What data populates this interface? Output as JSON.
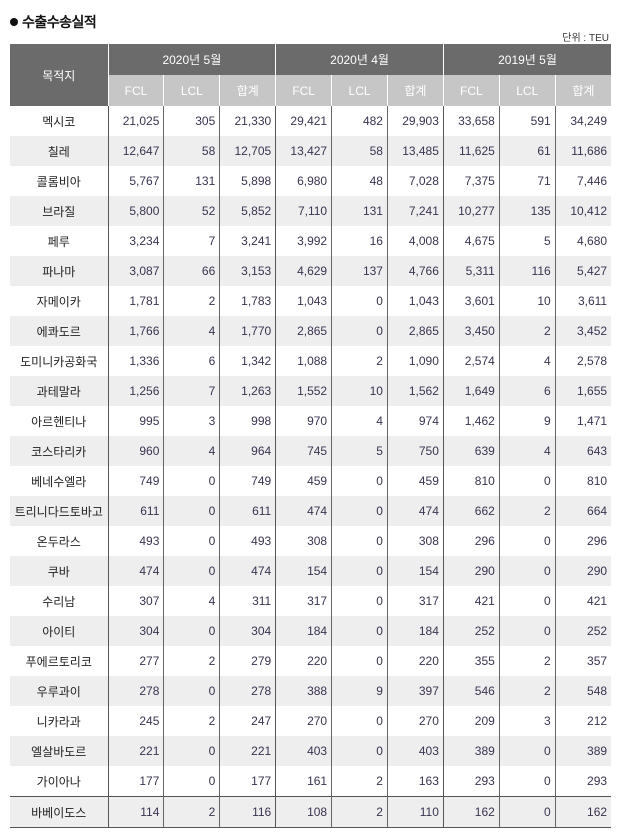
{
  "title": "수출수송실적",
  "unit": "단위 : TEU",
  "table": {
    "dest_header": "목적지",
    "groups": [
      "2020년 5월",
      "2020년 4월",
      "2019년 5월"
    ],
    "subcolumns": [
      "FCL",
      "LCL",
      "합계"
    ],
    "rows": [
      {
        "name": "멕시코",
        "values": [
          "21,025",
          "305",
          "21,330",
          "29,421",
          "482",
          "29,903",
          "33,658",
          "591",
          "34,249"
        ]
      },
      {
        "name": "칠레",
        "values": [
          "12,647",
          "58",
          "12,705",
          "13,427",
          "58",
          "13,485",
          "11,625",
          "61",
          "11,686"
        ]
      },
      {
        "name": "콜롬비아",
        "values": [
          "5,767",
          "131",
          "5,898",
          "6,980",
          "48",
          "7,028",
          "7,375",
          "71",
          "7,446"
        ]
      },
      {
        "name": "브라질",
        "values": [
          "5,800",
          "52",
          "5,852",
          "7,110",
          "131",
          "7,241",
          "10,277",
          "135",
          "10,412"
        ]
      },
      {
        "name": "페루",
        "values": [
          "3,234",
          "7",
          "3,241",
          "3,992",
          "16",
          "4,008",
          "4,675",
          "5",
          "4,680"
        ]
      },
      {
        "name": "파나마",
        "values": [
          "3,087",
          "66",
          "3,153",
          "4,629",
          "137",
          "4,766",
          "5,311",
          "116",
          "5,427"
        ]
      },
      {
        "name": "자메이카",
        "values": [
          "1,781",
          "2",
          "1,783",
          "1,043",
          "0",
          "1,043",
          "3,601",
          "10",
          "3,611"
        ]
      },
      {
        "name": "에콰도르",
        "values": [
          "1,766",
          "4",
          "1,770",
          "2,865",
          "0",
          "2,865",
          "3,450",
          "2",
          "3,452"
        ]
      },
      {
        "name": "도미니카공화국",
        "values": [
          "1,336",
          "6",
          "1,342",
          "1,088",
          "2",
          "1,090",
          "2,574",
          "4",
          "2,578"
        ]
      },
      {
        "name": "과테말라",
        "values": [
          "1,256",
          "7",
          "1,263",
          "1,552",
          "10",
          "1,562",
          "1,649",
          "6",
          "1,655"
        ]
      },
      {
        "name": "아르헨티나",
        "values": [
          "995",
          "3",
          "998",
          "970",
          "4",
          "974",
          "1,462",
          "9",
          "1,471"
        ]
      },
      {
        "name": "코스타리카",
        "values": [
          "960",
          "4",
          "964",
          "745",
          "5",
          "750",
          "639",
          "4",
          "643"
        ]
      },
      {
        "name": "베네수엘라",
        "values": [
          "749",
          "0",
          "749",
          "459",
          "0",
          "459",
          "810",
          "0",
          "810"
        ]
      },
      {
        "name": "트리니다드토바고",
        "values": [
          "611",
          "0",
          "611",
          "474",
          "0",
          "474",
          "662",
          "2",
          "664"
        ]
      },
      {
        "name": "온두라스",
        "values": [
          "493",
          "0",
          "493",
          "308",
          "0",
          "308",
          "296",
          "0",
          "296"
        ]
      },
      {
        "name": "쿠바",
        "values": [
          "474",
          "0",
          "474",
          "154",
          "0",
          "154",
          "290",
          "0",
          "290"
        ]
      },
      {
        "name": "수리남",
        "values": [
          "307",
          "4",
          "311",
          "317",
          "0",
          "317",
          "421",
          "0",
          "421"
        ]
      },
      {
        "name": "아이티",
        "values": [
          "304",
          "0",
          "304",
          "184",
          "0",
          "184",
          "252",
          "0",
          "252"
        ]
      },
      {
        "name": "푸에르토리코",
        "values": [
          "277",
          "2",
          "279",
          "220",
          "0",
          "220",
          "355",
          "2",
          "357"
        ]
      },
      {
        "name": "우루과이",
        "values": [
          "278",
          "0",
          "278",
          "388",
          "9",
          "397",
          "546",
          "2",
          "548"
        ]
      },
      {
        "name": "니카라과",
        "values": [
          "245",
          "2",
          "247",
          "270",
          "0",
          "270",
          "209",
          "3",
          "212"
        ]
      },
      {
        "name": "엘살바도르",
        "values": [
          "221",
          "0",
          "221",
          "403",
          "0",
          "403",
          "389",
          "0",
          "389"
        ]
      },
      {
        "name": "가이아나",
        "values": [
          "177",
          "0",
          "177",
          "161",
          "2",
          "163",
          "293",
          "0",
          "293"
        ]
      },
      {
        "name": "바베이도스",
        "values": [
          "114",
          "2",
          "116",
          "108",
          "2",
          "110",
          "162",
          "0",
          "162"
        ]
      }
    ]
  },
  "colors": {
    "header": "#6b6b6b",
    "subheader": "#c6c6c6",
    "alt_row": "#eeeeee"
  }
}
